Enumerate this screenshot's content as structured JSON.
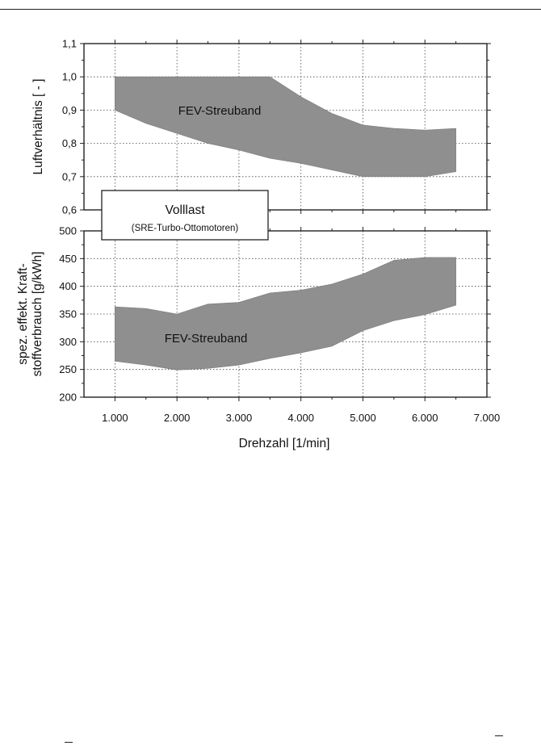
{
  "chart_data": [
    {
      "type": "area",
      "ylabel": "Luftverhältnis [ - ]",
      "ylim": [
        0.6,
        1.1
      ],
      "yticks": [
        0.6,
        0.7,
        0.8,
        0.9,
        1.0,
        1.1
      ],
      "ytick_labels": [
        "0,6",
        "0,7",
        "0,8",
        "0,9",
        "1,0",
        "1,1"
      ],
      "xlim": [
        500,
        7000
      ],
      "grid": true,
      "series": [
        {
          "name": "FEV-Streuband",
          "upper": [
            [
              1000,
              1.0
            ],
            [
              3500,
              1.0
            ],
            [
              4000,
              0.94
            ],
            [
              4500,
              0.89
            ],
            [
              5000,
              0.855
            ],
            [
              5500,
              0.845
            ],
            [
              6000,
              0.84
            ],
            [
              6500,
              0.845
            ]
          ],
          "lower": [
            [
              1000,
              0.9
            ],
            [
              1500,
              0.86
            ],
            [
              2000,
              0.83
            ],
            [
              2500,
              0.8
            ],
            [
              3000,
              0.78
            ],
            [
              3500,
              0.755
            ],
            [
              4000,
              0.74
            ],
            [
              4500,
              0.72
            ],
            [
              5000,
              0.7
            ],
            [
              6000,
              0.7
            ],
            [
              6500,
              0.715
            ]
          ]
        }
      ],
      "annotation": "FEV-Streuband"
    },
    {
      "type": "area",
      "xlabel": "Drehzahl [1/min]",
      "ylabel_lines": [
        "spez. effekt. Kraft-",
        "stoffverbrauch [g/kWh]"
      ],
      "xlim": [
        500,
        7000
      ],
      "xticks": [
        1000,
        2000,
        3000,
        4000,
        5000,
        6000,
        7000
      ],
      "xtick_labels": [
        "1.000",
        "2.000",
        "3.000",
        "4.000",
        "5.000",
        "6.000",
        "7.000"
      ],
      "ylim": [
        200,
        500
      ],
      "yticks": [
        200,
        250,
        300,
        350,
        400,
        450,
        500
      ],
      "ytick_labels": [
        "200",
        "250",
        "300",
        "350",
        "400",
        "450",
        "500"
      ],
      "grid": true,
      "series": [
        {
          "name": "FEV-Streuband",
          "upper": [
            [
              1000,
              363
            ],
            [
              1500,
              360
            ],
            [
              2000,
              350
            ],
            [
              2500,
              368
            ],
            [
              3000,
              371
            ],
            [
              3500,
              388
            ],
            [
              4000,
              393
            ],
            [
              4500,
              404
            ],
            [
              5000,
              422
            ],
            [
              5500,
              447
            ],
            [
              6000,
              452
            ],
            [
              6500,
              452
            ]
          ],
          "lower": [
            [
              1000,
              265
            ],
            [
              1500,
              258
            ],
            [
              2000,
              249
            ],
            [
              2500,
              252
            ],
            [
              3000,
              258
            ],
            [
              3500,
              270
            ],
            [
              4000,
              280
            ],
            [
              4500,
              292
            ],
            [
              5000,
              320
            ],
            [
              5500,
              338
            ],
            [
              6000,
              349
            ],
            [
              6500,
              366
            ]
          ]
        }
      ],
      "annotation": "FEV-Streuband"
    }
  ],
  "legend": {
    "title": "Volllast",
    "subtitle": "(SRE-Turbo-Ottomotoren)"
  }
}
